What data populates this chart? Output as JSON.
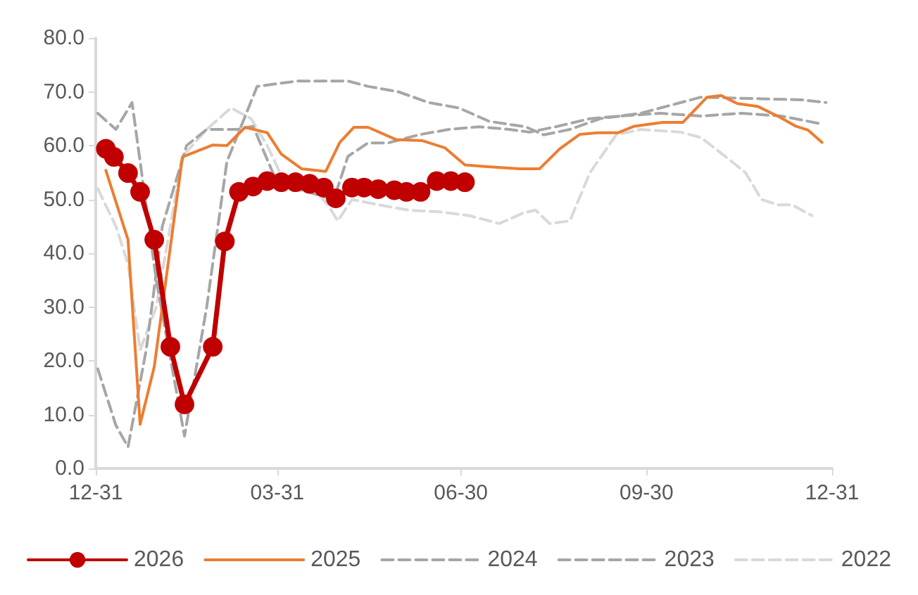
{
  "chart_data": {
    "type": "line",
    "xlim": [
      "2025-12-31",
      "2026-12-31"
    ],
    "xticks": [
      {
        "value": "2025-12-31",
        "label": "12-31"
      },
      {
        "value": "2026-03-31",
        "label": "03-31"
      },
      {
        "value": "2026-06-30",
        "label": "06-30"
      },
      {
        "value": "2026-09-30",
        "label": "09-30"
      },
      {
        "value": "2026-12-31",
        "label": "12-31"
      }
    ],
    "ylim": [
      0,
      80
    ],
    "yticks": [
      {
        "value": 0,
        "label": "0.0"
      },
      {
        "value": 10,
        "label": "10.0"
      },
      {
        "value": 20,
        "label": "20.0"
      },
      {
        "value": 30,
        "label": "30.0"
      },
      {
        "value": 40,
        "label": "40.0"
      },
      {
        "value": 50,
        "label": "50.0"
      },
      {
        "value": 60,
        "label": "60.0"
      },
      {
        "value": 70,
        "label": "70.0"
      },
      {
        "value": 80,
        "label": "80.0"
      }
    ],
    "legend": "bottom",
    "series": [
      {
        "name": "2022",
        "color": "#d9d9d9",
        "line_style": "dashed",
        "marker": "none",
        "x": [
          "2026-01-01",
          "2026-01-10",
          "2026-01-16",
          "2026-01-22",
          "2026-01-30",
          "2026-02-12",
          "2026-02-24",
          "2026-03-08",
          "2026-03-18",
          "2026-03-26",
          "2026-04-05",
          "2026-04-18",
          "2026-04-25",
          "2026-04-30",
          "2026-05-07",
          "2026-05-20",
          "2026-06-04",
          "2026-06-19",
          "2026-07-04",
          "2026-07-19",
          "2026-07-31",
          "2026-08-06",
          "2026-08-13",
          "2026-08-23",
          "2026-09-02",
          "2026-09-15",
          "2026-09-27",
          "2026-10-17",
          "2026-10-27",
          "2026-11-08",
          "2026-11-18",
          "2026-11-26",
          "2026-12-04",
          "2026-12-11",
          "2026-12-21"
        ],
        "values": [
          52,
          45,
          38,
          22,
          30,
          58,
          63,
          67,
          65,
          60,
          52,
          52,
          49,
          46,
          50,
          49,
          48,
          47.7,
          47,
          45.5,
          47.5,
          48,
          45.5,
          46,
          55,
          62,
          63,
          62.5,
          61.5,
          58,
          55,
          50,
          49,
          49,
          47
        ]
      },
      {
        "name": "2023",
        "color": "#a6a6a6",
        "line_style": "dashed",
        "marker": "none",
        "x": [
          "2026-01-01",
          "2026-01-10",
          "2026-01-16",
          "2026-01-25",
          "2026-02-02",
          "2026-02-14",
          "2026-02-24",
          "2026-03-11",
          "2026-03-19",
          "2026-03-31",
          "2026-04-10",
          "2026-04-28",
          "2026-05-05",
          "2026-05-15",
          "2026-05-25",
          "2026-06-09",
          "2026-06-24",
          "2026-07-09",
          "2026-07-24",
          "2026-08-03",
          "2026-08-16",
          "2026-09-02",
          "2026-09-17",
          "2026-10-07",
          "2026-10-27",
          "2026-11-16",
          "2026-12-06",
          "2026-12-26"
        ],
        "values": [
          18.5,
          8,
          4,
          22,
          45,
          60,
          63,
          63,
          63.6,
          53,
          null,
          50,
          58,
          60.5,
          60.5,
          62,
          63,
          63.5,
          63,
          62.5,
          63.5,
          65,
          65.5,
          66,
          65.5,
          66,
          65.5,
          64
        ]
      },
      {
        "name": "2024",
        "color": "#a6a6a6",
        "line_style": "dashed",
        "marker": "none",
        "x": [
          "2026-01-01",
          "2026-01-10",
          "2026-01-18",
          "2026-01-30",
          "2026-02-13",
          "2026-02-24",
          "2026-03-06",
          "2026-03-21",
          "2026-04-10",
          "2026-05-05",
          "2026-05-15",
          "2026-05-30",
          "2026-06-14",
          "2026-06-29",
          "2026-07-14",
          "2026-08-01",
          "2026-08-10",
          "2026-08-23",
          "2026-09-07",
          "2026-09-27",
          "2026-10-17",
          "2026-10-27",
          "2026-11-26",
          "2026-12-16",
          "2026-12-28"
        ],
        "values": [
          66,
          63,
          68,
          35,
          6,
          30,
          57,
          71,
          72,
          72,
          71,
          70,
          68,
          67,
          64.5,
          63.5,
          62,
          63,
          65,
          66,
          68,
          69,
          68.7,
          68.5,
          68
        ]
      },
      {
        "name": "2025",
        "color": "#ed7d31",
        "line_style": "solid",
        "marker": "none",
        "x": [
          "2026-01-05",
          "2026-01-16",
          "2026-01-22",
          "2026-01-29",
          "2026-02-12",
          "2026-02-27",
          "2026-03-06",
          "2026-03-15",
          "2026-03-26",
          "2026-04-02",
          "2026-04-12",
          "2026-04-24",
          "2026-05-01",
          "2026-05-08",
          "2026-05-15",
          "2026-05-29",
          "2026-06-11",
          "2026-06-22",
          "2026-07-02",
          "2026-07-12",
          "2026-07-29",
          "2026-08-08",
          "2026-08-18",
          "2026-08-28",
          "2026-09-06",
          "2026-09-16",
          "2026-09-24",
          "2026-10-08",
          "2026-10-18",
          "2026-10-30",
          "2026-11-06",
          "2026-11-14",
          "2026-11-24",
          "2026-12-05",
          "2026-12-13",
          "2026-12-19",
          "2026-12-26"
        ],
        "values": [
          55.4,
          42.5,
          8.2,
          18.9,
          57.9,
          60.1,
          60,
          63.4,
          62.4,
          58.4,
          55.7,
          55.2,
          60.6,
          63.4,
          63.4,
          61.1,
          60.9,
          59.6,
          56.4,
          56.1,
          55.7,
          55.7,
          59.4,
          62.1,
          62.4,
          62.4,
          63.6,
          64.3,
          64.3,
          69,
          69.3,
          67.8,
          67.3,
          65.3,
          63.6,
          62.9,
          60.6
        ]
      },
      {
        "name": "2026",
        "color": "#c00000",
        "line_style": "solid",
        "marker": "circle",
        "x": [
          "2026-01-05",
          "2026-01-09",
          "2026-01-16",
          "2026-01-22",
          "2026-01-29",
          "2026-02-06",
          "2026-02-13",
          "2026-02-27",
          "2026-03-05",
          "2026-03-12",
          "2026-03-19",
          "2026-03-26",
          "2026-04-02",
          "2026-04-09",
          "2026-04-16",
          "2026-04-23",
          "2026-04-29",
          "2026-05-07",
          "2026-05-13",
          "2026-05-20",
          "2026-05-28",
          "2026-06-03",
          "2026-06-10",
          "2026-06-18",
          "2026-06-25",
          "2026-07-02"
        ],
        "values": [
          59.4,
          57.9,
          54.9,
          51.4,
          42.5,
          22.6,
          11.9,
          22.6,
          42.2,
          51.4,
          52.4,
          53.4,
          53.2,
          53.2,
          52.9,
          52.2,
          50.2,
          52.2,
          52.2,
          51.9,
          51.7,
          51.4,
          51.4,
          53.4,
          53.4,
          53.2
        ]
      }
    ]
  }
}
